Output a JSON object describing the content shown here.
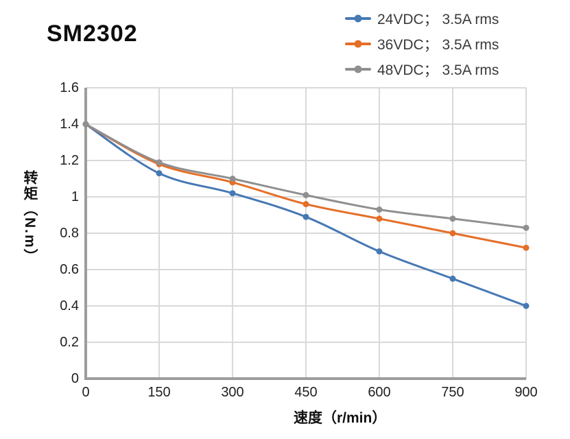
{
  "page": {
    "title": "SM2302"
  },
  "chart_data": {
    "type": "line",
    "title": "SM2302",
    "x": [
      0,
      150,
      300,
      450,
      600,
      750,
      900
    ],
    "series": [
      {
        "name": "24VDC； 3.5A rms",
        "color": "#4678B4",
        "values": [
          1.4,
          1.13,
          1.02,
          0.89,
          0.7,
          0.55,
          0.4
        ]
      },
      {
        "name": "36VDC； 3.5A rms",
        "color": "#E56E28",
        "values": [
          1.4,
          1.18,
          1.08,
          0.96,
          0.88,
          0.8,
          0.72
        ]
      },
      {
        "name": "48VDC； 3.5A rms",
        "color": "#8F8F8F",
        "values": [
          1.4,
          1.19,
          1.1,
          1.01,
          0.93,
          0.88,
          0.83
        ]
      }
    ],
    "xlabel": "速度（r/min）",
    "ylabel": "转矩（N.m）",
    "xlim": [
      0,
      900
    ],
    "ylim": [
      0,
      1.6
    ],
    "xticks": [
      "0",
      "150",
      "300",
      "450",
      "600",
      "750",
      "900"
    ],
    "yticks": [
      "1.6",
      "1.4",
      "1.2",
      "1",
      "0.8",
      "0.6",
      "0.4",
      "0.2",
      "0"
    ],
    "grid": true,
    "smooth": true,
    "legend_position": "top-right",
    "colors": {
      "grid": "#d9d9d9",
      "axis": "#9c9c9c",
      "tick_text": "#1f1f1f",
      "legend_text": "#3a3a3a",
      "background": "#ffffff"
    }
  }
}
